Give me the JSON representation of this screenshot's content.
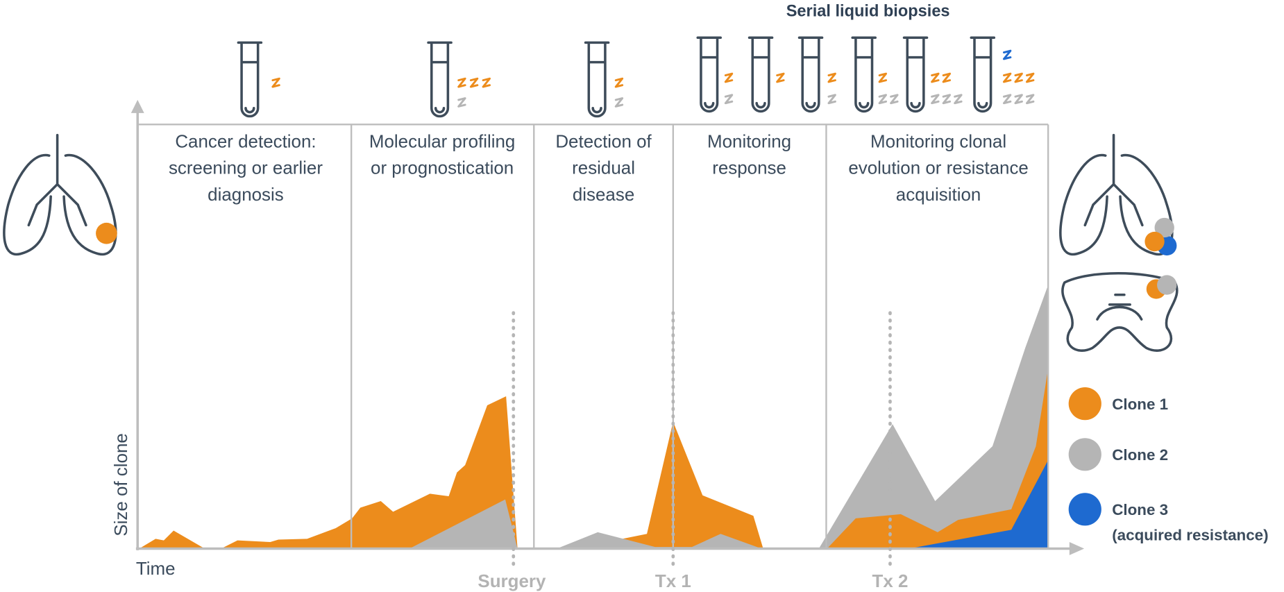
{
  "title": "Serial liquid biopsies",
  "phases": [
    {
      "lines": [
        "Cancer detection:",
        "screening or earlier",
        "diagnosis"
      ]
    },
    {
      "lines": [
        "Molecular profiling",
        "or prognostication"
      ]
    },
    {
      "lines": [
        "Detection of",
        "residual",
        "disease"
      ]
    },
    {
      "lines": [
        "Monitoring",
        "response"
      ]
    },
    {
      "lines": [
        "Monitoring clonal",
        "evolution or resistance",
        "acquisition"
      ]
    }
  ],
  "axis": {
    "y_label": "Size of clone",
    "x_label": "Time"
  },
  "events": [
    "Surgery",
    "Tx 1",
    "Tx 2"
  ],
  "legend": [
    {
      "label": "Clone 1"
    },
    {
      "label": "Clone 2"
    },
    {
      "label": "Clone 3",
      "note": "(acquired resistance)"
    }
  ]
}
